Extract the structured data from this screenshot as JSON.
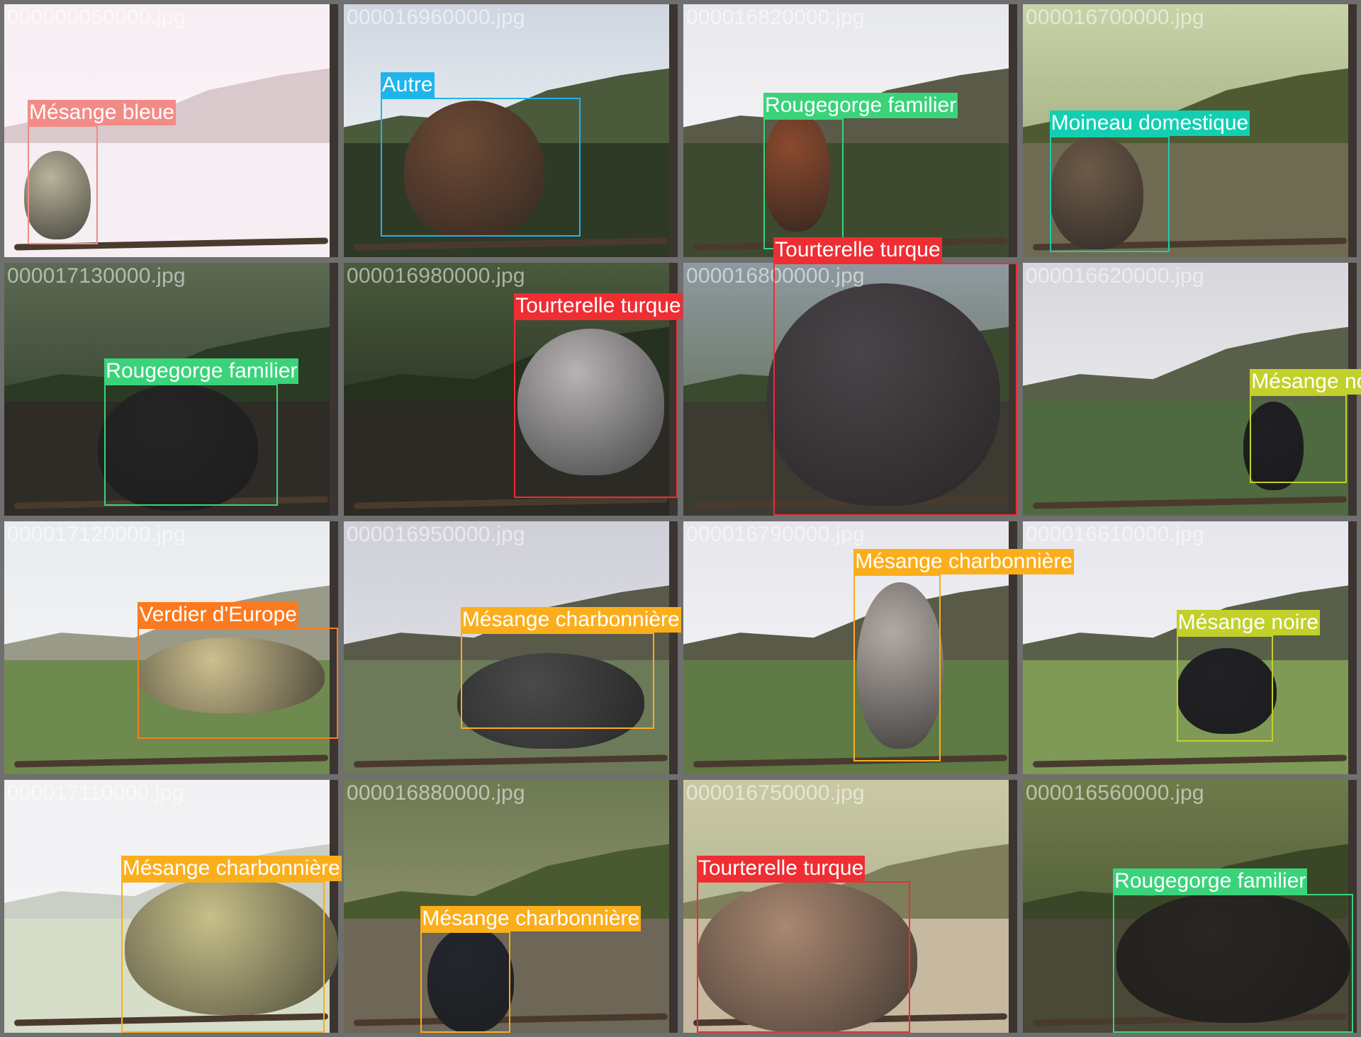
{
  "colors": {
    "Mésange bleue": "#f28b86",
    "Autre": "#1fb4ec",
    "Rougegorge familier": "#3ad37a",
    "Moineau domestique": "#12cfb2",
    "Tourterelle turque": "#ef2d33",
    "Mésange noire": "#c2d02a",
    "Verdier d'Europe": "#fb7a1f",
    "Mésange charbonnière": "#fbae1c"
  },
  "tiles": [
    {
      "file": "000000050000.jpg",
      "detections": [
        {
          "label": "Mésange bleue"
        }
      ]
    },
    {
      "file": "000016960000.jpg",
      "detections": [
        {
          "label": "Autre"
        }
      ]
    },
    {
      "file": "000016820000.jpg",
      "detections": [
        {
          "label": "Rougegorge familier"
        }
      ]
    },
    {
      "file": "000016700000.jpg",
      "detections": [
        {
          "label": "Moineau domestique"
        }
      ]
    },
    {
      "file": "000017130000.jpg",
      "detections": [
        {
          "label": "Rougegorge familier"
        }
      ]
    },
    {
      "file": "000016980000.jpg",
      "detections": [
        {
          "label": "Tourterelle turque"
        }
      ]
    },
    {
      "file": "000016800000.jpg",
      "detections": [
        {
          "label": "Tourterelle turque"
        }
      ]
    },
    {
      "file": "000016620000.jpg",
      "detections": [
        {
          "label": "Mésange noire"
        }
      ]
    },
    {
      "file": "000017120000.jpg",
      "detections": [
        {
          "label": "Verdier d'Europe"
        }
      ]
    },
    {
      "file": "000016950000.jpg",
      "detections": [
        {
          "label": "Mésange charbonnière"
        }
      ]
    },
    {
      "file": "000016790000.jpg",
      "detections": [
        {
          "label": "Mésange charbonnière"
        }
      ]
    },
    {
      "file": "000016610000.jpg",
      "detections": [
        {
          "label": "Mésange noire"
        }
      ]
    },
    {
      "file": "000017110000.jpg",
      "detections": [
        {
          "label": "Mésange charbonnière"
        }
      ]
    },
    {
      "file": "000016880000.jpg",
      "detections": [
        {
          "label": "Mésange charbonnière"
        }
      ]
    },
    {
      "file": "000016750000.jpg",
      "detections": [
        {
          "label": "Tourterelle turque"
        }
      ]
    },
    {
      "file": "000016560000.jpg",
      "detections": [
        {
          "label": "Rougegorge familier"
        }
      ]
    }
  ]
}
